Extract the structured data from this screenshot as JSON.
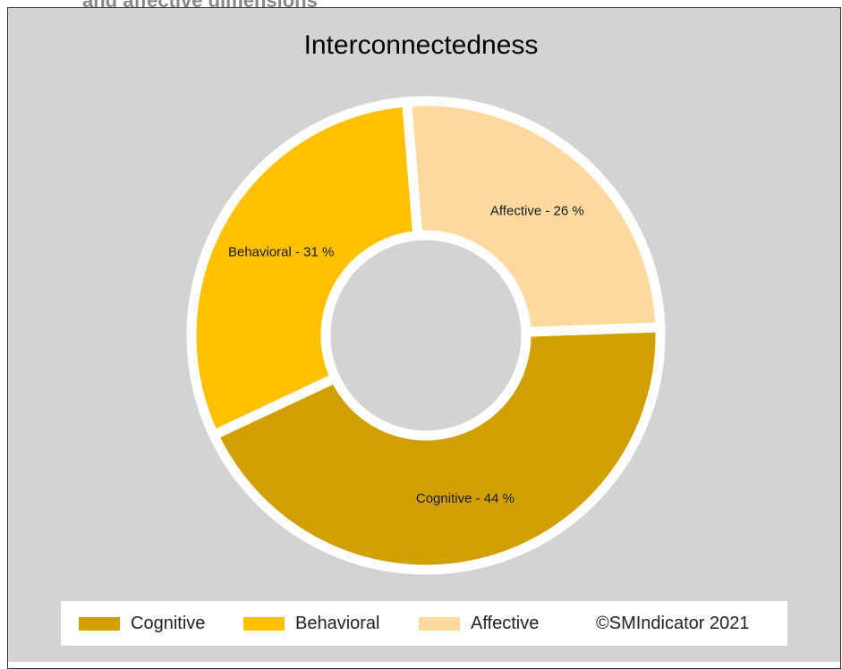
{
  "page": {
    "heading_fragment": "and affective dimensions"
  },
  "chart_data": {
    "type": "pie",
    "title": "Interconnectedness",
    "categories": [
      "Cognitive",
      "Behavioral",
      "Affective"
    ],
    "values": [
      44,
      31,
      26
    ],
    "unit": "%",
    "data_labels": [
      "Cognitive - 44 %",
      "Behavioral - 31 %",
      "Affective - 26 %"
    ],
    "colors": [
      "#D1A000",
      "#FFC000",
      "#FDD9A0"
    ],
    "donut": true,
    "legend_position": "bottom",
    "background_color": "#D3D3D3"
  },
  "legend": {
    "items": [
      {
        "label": "Cognitive",
        "color": "#D1A000"
      },
      {
        "label": "Behavioral",
        "color": "#FFC000"
      },
      {
        "label": "Affective",
        "color": "#FDD9A0"
      }
    ],
    "copyright": "©SMIndicator 2021"
  }
}
